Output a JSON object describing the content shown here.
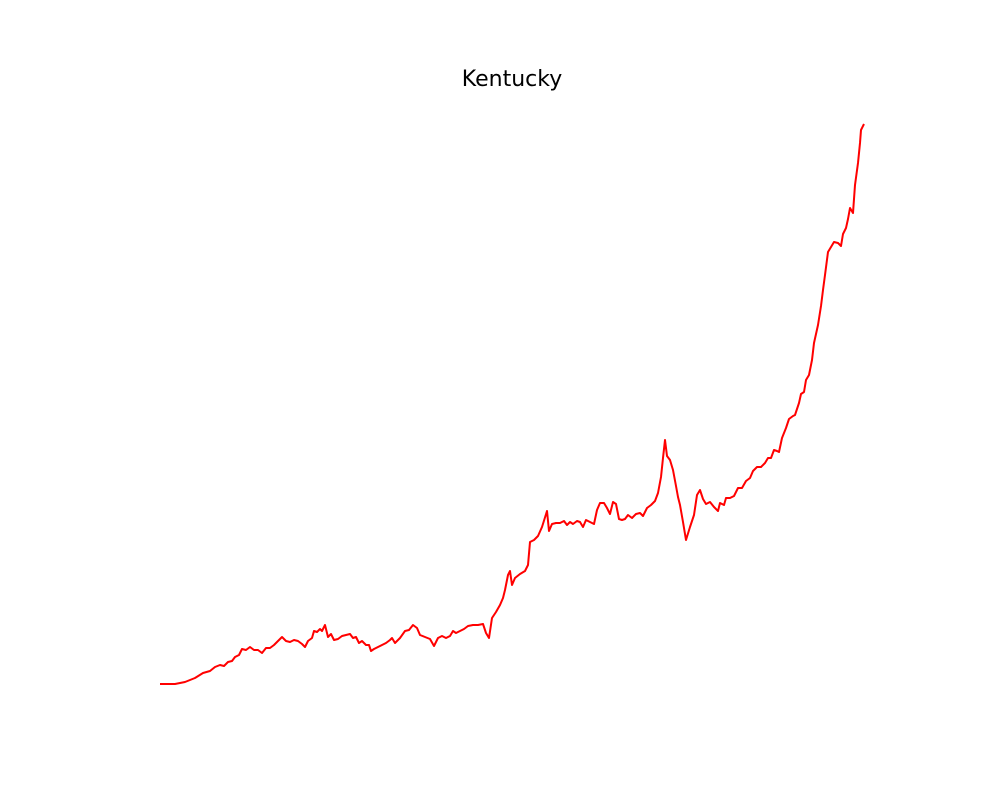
{
  "chart_data": {
    "type": "line",
    "title": "Kentucky",
    "color": "#ff0000",
    "xlim": [
      0,
      775
    ],
    "ylim": [
      0,
      616
    ],
    "x": [
      35,
      50,
      60,
      70,
      78,
      85,
      90,
      95,
      99,
      103,
      107,
      110,
      114,
      117,
      121,
      125,
      129,
      133,
      137,
      141,
      145,
      149,
      153,
      157,
      161,
      165,
      169,
      173,
      177,
      180,
      183,
      187,
      189,
      192,
      195,
      197,
      200,
      203,
      206,
      209,
      213,
      217,
      221,
      225,
      228,
      231,
      234,
      237,
      241,
      244,
      246,
      249,
      253,
      257,
      261,
      265,
      267,
      270,
      275,
      280,
      284,
      288,
      292,
      295,
      300,
      305,
      309,
      313,
      317,
      321,
      325,
      328,
      331,
      335,
      339,
      343,
      348,
      353,
      358,
      361,
      364,
      367,
      371,
      375,
      378,
      380,
      383,
      385,
      387,
      390,
      395,
      400,
      403,
      405,
      409,
      413,
      417,
      422,
      424,
      427,
      431,
      435,
      439,
      442,
      445,
      448,
      452,
      455,
      458,
      461,
      465,
      469,
      472,
      475,
      479,
      482,
      485,
      488,
      491,
      494,
      497,
      500,
      503,
      507,
      511,
      515,
      518,
      522,
      526,
      530,
      533,
      536,
      538,
      540,
      542,
      545,
      548,
      551,
      553,
      555,
      558,
      561,
      565,
      569,
      572,
      575,
      578,
      581,
      585,
      589,
      593,
      595,
      599,
      601,
      605,
      609,
      613,
      617,
      621,
      625,
      628,
      632,
      636,
      640,
      643,
      646,
      649,
      652,
      654,
      657,
      661,
      664,
      668,
      670,
      674,
      676,
      679,
      681,
      684,
      687,
      689,
      693,
      696,
      698,
      700,
      703,
      706,
      709,
      713,
      716,
      718,
      721,
      723,
      725,
      728,
      730,
      733,
      735,
      736,
      739
    ],
    "values": [
      28,
      28,
      30,
      34,
      39,
      41,
      45,
      47,
      46,
      50,
      51,
      55,
      57,
      63,
      62,
      65,
      62,
      62,
      59,
      64,
      64,
      67,
      71,
      75,
      71,
      70,
      72,
      71,
      68,
      65,
      71,
      74,
      81,
      80,
      83,
      81,
      87,
      75,
      78,
      72,
      73,
      76,
      77,
      78,
      74,
      75,
      69,
      71,
      67,
      67,
      61,
      63,
      65,
      67,
      69,
      72,
      74,
      69,
      74,
      81,
      82,
      87,
      84,
      77,
      75,
      73,
      66,
      74,
      76,
      74,
      76,
      81,
      79,
      81,
      83,
      86,
      87,
      87,
      88,
      79,
      74,
      94,
      100,
      107,
      114,
      122,
      137,
      141,
      127,
      134,
      138,
      141,
      147,
      170,
      172,
      176,
      185,
      201,
      181,
      188,
      189,
      189,
      191,
      187,
      190,
      188,
      191,
      190,
      185,
      192,
      190,
      188,
      202,
      209,
      209,
      204,
      198,
      210,
      208,
      193,
      192,
      193,
      197,
      194,
      198,
      199,
      196,
      204,
      207,
      211,
      219,
      235,
      254,
      272,
      256,
      252,
      242,
      226,
      215,
      207,
      190,
      172,
      185,
      197,
      217,
      222,
      213,
      208,
      210,
      205,
      201,
      209,
      207,
      214,
      214,
      216,
      224,
      224,
      231,
      234,
      241,
      245,
      245,
      249,
      254,
      254,
      262,
      261,
      260,
      274,
      284,
      293,
      296,
      297,
      309,
      318,
      320,
      332,
      337,
      352,
      369,
      387,
      406,
      422,
      437,
      460,
      465,
      470,
      469,
      466,
      478,
      484,
      493,
      504,
      499,
      527,
      549,
      569,
      582,
      588
    ]
  }
}
